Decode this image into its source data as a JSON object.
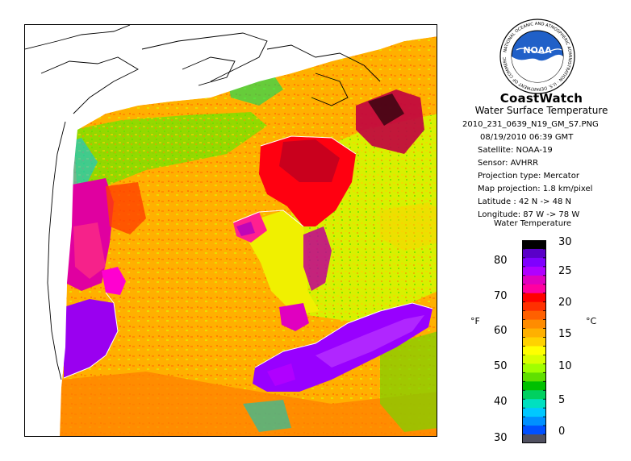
{
  "header": {
    "title": "CoastWatch",
    "subtitle": "Water Surface Temperature"
  },
  "metadata": {
    "filename": "2010_231_0639_N19_GM_S7.PNG",
    "datetime": "08/19/2010   06:39 GMT",
    "satellite": "Satellite: NOAA-19",
    "sensor": "Sensor: AVHRR",
    "projection_type": "Projection type:  Mercator",
    "map_projection": "Map projection: 1.8 km/pixel",
    "latitude": "Latitude : 42 N -> 48 N",
    "longitude": "Longitude: 87 W -> 78 W"
  },
  "logo": {
    "text": "NOAA",
    "ring_text": "NATIONAL OCEANIC AND ATMOSPHERIC ADMINISTRATION · U.S. DEPARTMENT OF COMMERCE"
  },
  "legend": {
    "title": "Water Temperature",
    "unit_f": "°F",
    "unit_c": "°C",
    "fahrenheit_ticks": [
      "80",
      "70",
      "60",
      "50",
      "40",
      "30"
    ],
    "celsius_ticks": [
      "30",
      "25",
      "20",
      "15",
      "10",
      "5",
      "0"
    ],
    "colors": [
      "#000000",
      "#5a00c8",
      "#8000ff",
      "#b000ff",
      "#e000c0",
      "#ff00a0",
      "#ff0000",
      "#ff3000",
      "#ff6000",
      "#ff8c00",
      "#ffb000",
      "#ffd200",
      "#ffff00",
      "#d8ff00",
      "#a0ff00",
      "#60e000",
      "#00c000",
      "#00d060",
      "#00e0c0",
      "#00c8ff",
      "#0090ff",
      "#0050ff",
      "#505060"
    ]
  },
  "map": {
    "region": "Lakes Michigan, Huron, Erie and Ontario region",
    "lake_colors": {
      "lake_michigan_south": "#9a00f0",
      "lake_michigan_east": "#ff00d0",
      "saginaw_bay": "#ff2090",
      "georgian_bay": "#ff0010",
      "lake_huron": "#f0f000",
      "lake_erie": "#9800ff",
      "lake_st_clair": "#e000c0"
    }
  }
}
